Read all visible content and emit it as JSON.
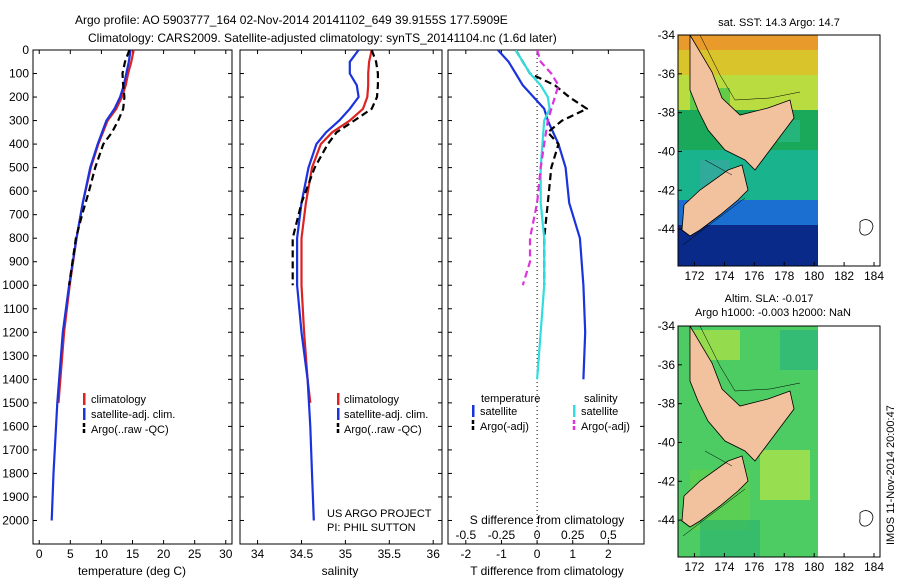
{
  "header": {
    "line1": "Argo profile: AO 5903777_164 02-Nov-2014 20141102_649 39.9155S 177.5909E",
    "line2": "Climatology: CARS2009. Satellite-adjusted climatology: synTS_20141104.nc (1.6d later)"
  },
  "colors": {
    "climatology": "#dd2222",
    "satellite": "#1a33dd",
    "argo": "#000000",
    "salinity_satellite": "#33dddd",
    "salinity_argo": "#dd33dd",
    "land": "#f2c29e"
  },
  "chart_data": [
    {
      "type": "line",
      "id": "temperature",
      "xlabel": "temperature (deg C)",
      "ylabel": "",
      "xlim": [
        -1,
        31
      ],
      "ylim": [
        2100,
        0
      ],
      "x_ticks": [
        0,
        5,
        10,
        15,
        20,
        25,
        30
      ],
      "y_ticks": [
        0,
        100,
        200,
        300,
        400,
        500,
        600,
        700,
        800,
        900,
        1000,
        1100,
        1200,
        1300,
        1400,
        1500,
        1600,
        1700,
        1800,
        1900,
        2000
      ],
      "legend": [
        "climatology",
        "satellite-adj. clim.",
        "Argo(..raw -QC)"
      ],
      "legend_position": "lower-left",
      "series": [
        {
          "name": "climatology",
          "style": "solid",
          "x": [
            15.2,
            14.8,
            14.3,
            13.9,
            13.3,
            12.4,
            11.0,
            9.5,
            8.3,
            7.0,
            6.0,
            4.9,
            4.0,
            3.1
          ],
          "y": [
            0,
            50,
            100,
            150,
            200,
            250,
            300,
            400,
            500,
            650,
            800,
            1000,
            1200,
            1500
          ]
        },
        {
          "name": "satellite-adj. clim.",
          "style": "solid",
          "x": [
            14.7,
            14.4,
            14.0,
            13.6,
            13.0,
            12.1,
            10.8,
            9.4,
            8.2,
            7.0,
            6.0,
            4.8,
            3.8,
            2.9,
            2.3,
            2.0
          ],
          "y": [
            0,
            50,
            100,
            150,
            200,
            250,
            300,
            400,
            500,
            650,
            800,
            1000,
            1200,
            1500,
            1800,
            2000
          ]
        },
        {
          "name": "Argo(..raw -QC)",
          "style": "dashed",
          "x": [
            14.5,
            13.8,
            13.4,
            13.5,
            13.7,
            13.5,
            12.7,
            11.7,
            10.3,
            9.0,
            8.0,
            6.9,
            5.9,
            4.8
          ],
          "y": [
            0,
            50,
            100,
            150,
            200,
            250,
            300,
            350,
            400,
            500,
            600,
            700,
            800,
            1000
          ]
        }
      ]
    },
    {
      "type": "line",
      "id": "salinity",
      "xlabel": "salinity",
      "ylabel": "",
      "xlim": [
        33.8,
        36.1
      ],
      "ylim": [
        2100,
        0
      ],
      "x_ticks": [
        34,
        34.5,
        35,
        35.5,
        36
      ],
      "legend": [
        "climatology",
        "satellite-adj. clim.",
        "Argo(..raw -QC)"
      ],
      "legend_position": "lower-left",
      "annotation": [
        "US ARGO PROJECT",
        "PI: PHIL SUTTON"
      ],
      "series": [
        {
          "name": "climatology",
          "style": "solid",
          "x": [
            35.3,
            35.27,
            35.26,
            35.26,
            35.25,
            35.2,
            35.05,
            34.85,
            34.72,
            34.62,
            34.55,
            34.5,
            34.5,
            34.53,
            34.57,
            34.6
          ],
          "y": [
            0,
            50,
            100,
            150,
            200,
            250,
            300,
            350,
            400,
            500,
            650,
            800,
            1000,
            1200,
            1400,
            1500
          ]
        },
        {
          "name": "satellite-adj. clim.",
          "style": "solid",
          "x": [
            35.15,
            35.05,
            35.05,
            35.13,
            35.15,
            35.05,
            34.93,
            34.78,
            34.67,
            34.58,
            34.5,
            34.45,
            34.45,
            34.5,
            34.57,
            34.6,
            34.62,
            34.64
          ],
          "y": [
            0,
            50,
            100,
            150,
            200,
            250,
            300,
            350,
            400,
            500,
            650,
            800,
            1000,
            1200,
            1400,
            1600,
            1800,
            2000
          ]
        },
        {
          "name": "Argo(..raw -QC)",
          "style": "dashed",
          "x": [
            35.3,
            35.35,
            35.37,
            35.37,
            35.36,
            35.3,
            35.1,
            34.9,
            34.8,
            34.65,
            34.5,
            34.4,
            34.4
          ],
          "y": [
            0,
            50,
            100,
            150,
            200,
            250,
            300,
            350,
            400,
            500,
            650,
            800,
            1000
          ]
        }
      ]
    },
    {
      "type": "line",
      "id": "difference",
      "xlabel": "T difference from climatology",
      "x_top_label": "S difference from climatology",
      "ylabel": "",
      "xlim": [
        -2.5,
        3.0
      ],
      "ylim": [
        2100,
        0
      ],
      "x_ticks": [
        -2,
        -1,
        0,
        1,
        2
      ],
      "x_top_ticks": [
        -0.5,
        -0.25,
        0,
        0.25,
        0.5
      ],
      "legend_temperature_title": "temperature",
      "legend_salinity_title": "salinity",
      "legend_temperature": [
        "satellite",
        "Argo(-adj)"
      ],
      "legend_salinity": [
        "satellite",
        "Argo(-adj)"
      ],
      "series": [
        {
          "name": "temperature satellite",
          "style": "solid",
          "x": [
            -1.1,
            -0.8,
            -0.6,
            -0.4,
            -0.1,
            0.2,
            0.3,
            0.6,
            0.8,
            0.9,
            1.2,
            1.3,
            1.35,
            1.3
          ],
          "y": [
            0,
            50,
            100,
            150,
            200,
            250,
            300,
            400,
            500,
            650,
            800,
            1000,
            1200,
            1400
          ]
        },
        {
          "name": "temperature Argo(-adj)",
          "style": "dashed",
          "x": [
            -0.6,
            -0.4,
            -0.2,
            0.5,
            0.9,
            1.4,
            0.7,
            0.3,
            0.6,
            0.4,
            0.3,
            0.2,
            0.2
          ],
          "y": [
            0,
            50,
            100,
            150,
            200,
            250,
            300,
            350,
            400,
            500,
            650,
            800,
            1000
          ]
        },
        {
          "name": "salinity satellite",
          "style": "solid",
          "x": [
            -0.6,
            -0.4,
            -0.2,
            0.1,
            0.3,
            0.35,
            0.2,
            0.15,
            0.1,
            0.1,
            0.2,
            0.2,
            0.1,
            0.0
          ],
          "y": [
            0,
            50,
            100,
            150,
            200,
            250,
            300,
            400,
            500,
            650,
            800,
            1000,
            1200,
            1400
          ]
        },
        {
          "name": "salinity Argo(-adj)",
          "style": "dashed",
          "x": [
            0.0,
            0.1,
            0.4,
            0.6,
            0.5,
            0.3,
            0.2,
            0.1,
            0.0,
            -0.2,
            -0.2,
            -0.4
          ],
          "y": [
            0,
            50,
            100,
            150,
            200,
            300,
            400,
            500,
            650,
            800,
            900,
            1000
          ]
        }
      ]
    }
  ],
  "maps": [
    {
      "id": "sst-map",
      "title": "sat. SST: 14.3 Argo: 14.7",
      "lat_ticks": [
        -34,
        -36,
        -38,
        -40,
        -42,
        -44
      ],
      "lon_ticks": [
        172,
        174,
        176,
        178,
        180,
        182,
        184
      ]
    },
    {
      "id": "sla-map",
      "title_line1": "Altim. SLA: -0.017",
      "title_line2": "Argo h1000: -0.003 h2000: NaN",
      "lat_ticks": [
        -34,
        -36,
        -38,
        -40,
        -42,
        -44
      ],
      "lon_ticks": [
        172,
        174,
        176,
        178,
        180,
        182,
        184
      ],
      "side_label": "IMOS 11-Nov-2014 20:00:47"
    }
  ]
}
